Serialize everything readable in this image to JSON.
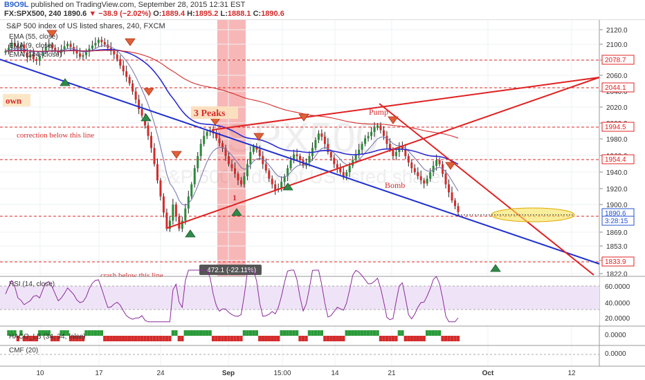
{
  "header": {
    "author": "B9O9L",
    "published_text": "published on TradingView.com, September 28, 2015 12:31 EST",
    "symbol_line": "FX:SPX500, 240",
    "last": "1890.6",
    "change": "▼ −38.9 (−2.02%)",
    "o_label": "O:",
    "o": "1889.4",
    "h_label": "H:",
    "h": "1895.2",
    "l_label": "L:",
    "l": "1888.1",
    "c_label": "C:",
    "c": "1890.6"
  },
  "chart_data": {
    "type": "candlestick",
    "title": "S&P 500 index of US listed shares, 240, FXCM",
    "watermark_symbol": "SPX500",
    "watermark_name": "S&P 500 index of US listed shares",
    "indicators": [
      "EMA (55, close)",
      "EMA (9, close)",
      "EMA (144, close)"
    ],
    "y_ticks": [
      "2120.0",
      "2100.0",
      "2080.0",
      "2060.0",
      "2040.0",
      "2020.0",
      "2000.0",
      "1980.0",
      "1960.0",
      "1940.0",
      "1920.0",
      "1900.0",
      "1869.0",
      "1853.0",
      "1837.0",
      "1822.0"
    ],
    "x_ticks": [
      "10",
      "17",
      "24",
      "Sep",
      "15:00",
      "14",
      "21",
      "Oct",
      "12"
    ],
    "price_markers": [
      {
        "value": "2078.7",
        "color": "#e02020"
      },
      {
        "value": "2044.1",
        "color": "#e02020"
      },
      {
        "value": "1994.5",
        "color": "#e02020"
      },
      {
        "value": "1954.4",
        "color": "#e02020"
      },
      {
        "value": "1890.6",
        "color": "#2050d0"
      },
      {
        "value": "3:28:15",
        "color": "#2050d0"
      },
      {
        "value": "1833.9",
        "color": "#e02020"
      }
    ],
    "annotations": {
      "down": "own",
      "three_peaks": "3 Peaks",
      "correction": "correction below this line",
      "crash": "crash below this line",
      "pump": "Pump",
      "bomb": "Bomb",
      "one": "1",
      "range_badge": "-472.1 (-22.11%)"
    },
    "closes": [
      2090,
      2094,
      2100,
      2096,
      2092,
      2098,
      2088,
      2082,
      2086,
      2080,
      2078,
      2084,
      2090,
      2095,
      2098,
      2094,
      2090,
      2088,
      2092,
      2096,
      2099,
      2095,
      2091,
      2087,
      2083,
      2085,
      2089,
      2093,
      2097,
      2100,
      2104,
      2101,
      2098,
      2094,
      2090,
      2086,
      2080,
      2072,
      2065,
      2058,
      2050,
      2040,
      2030,
      2018,
      2010,
      1998,
      1985,
      1970,
      1950,
      1930,
      1910,
      1890,
      1870,
      1880,
      1900,
      1885,
      1870,
      1880,
      1895,
      1910,
      1925,
      1945,
      1960,
      1975,
      1985,
      1990,
      1992,
      1988,
      1982,
      1976,
      1970,
      1960,
      1950,
      1945,
      1938,
      1930,
      1925,
      1935,
      1950,
      1965,
      1972,
      1968,
      1960,
      1950,
      1942,
      1932,
      1925,
      1918,
      1920,
      1928,
      1935,
      1945,
      1955,
      1962,
      1960,
      1955,
      1948,
      1952,
      1960,
      1970,
      1980,
      1988,
      1984,
      1975,
      1965,
      1958,
      1950,
      1945,
      1940,
      1935,
      1940,
      1948,
      1955,
      1962,
      1968,
      1975,
      1982,
      1985,
      1990,
      1995,
      1998,
      1992,
      1985,
      1975,
      1968,
      1960,
      1965,
      1972,
      1968,
      1960,
      1952,
      1945,
      1940,
      1935,
      1930,
      1926,
      1932,
      1940,
      1948,
      1955,
      1950,
      1938,
      1925,
      1915,
      1905,
      1898,
      1890.6
    ],
    "rsi": {
      "label": "RSI (14, close)",
      "ticks": [
        "60.0000",
        "40.0000",
        "20.0000"
      ]
    },
    "haco": {
      "label": "HACO_LB (34, 34, false)",
      "tick": "0.0000"
    },
    "cmf": {
      "label": "CMF (20)",
      "tick": "0.0000"
    }
  },
  "colors": {
    "up": "#2a8a3a",
    "down": "#d42b2b",
    "ema55": "#2b2bd0",
    "ema9": "#7a7ab0",
    "ema144": "#d42b2b",
    "rsi": "#8a2a9a",
    "band": "#f06060"
  }
}
